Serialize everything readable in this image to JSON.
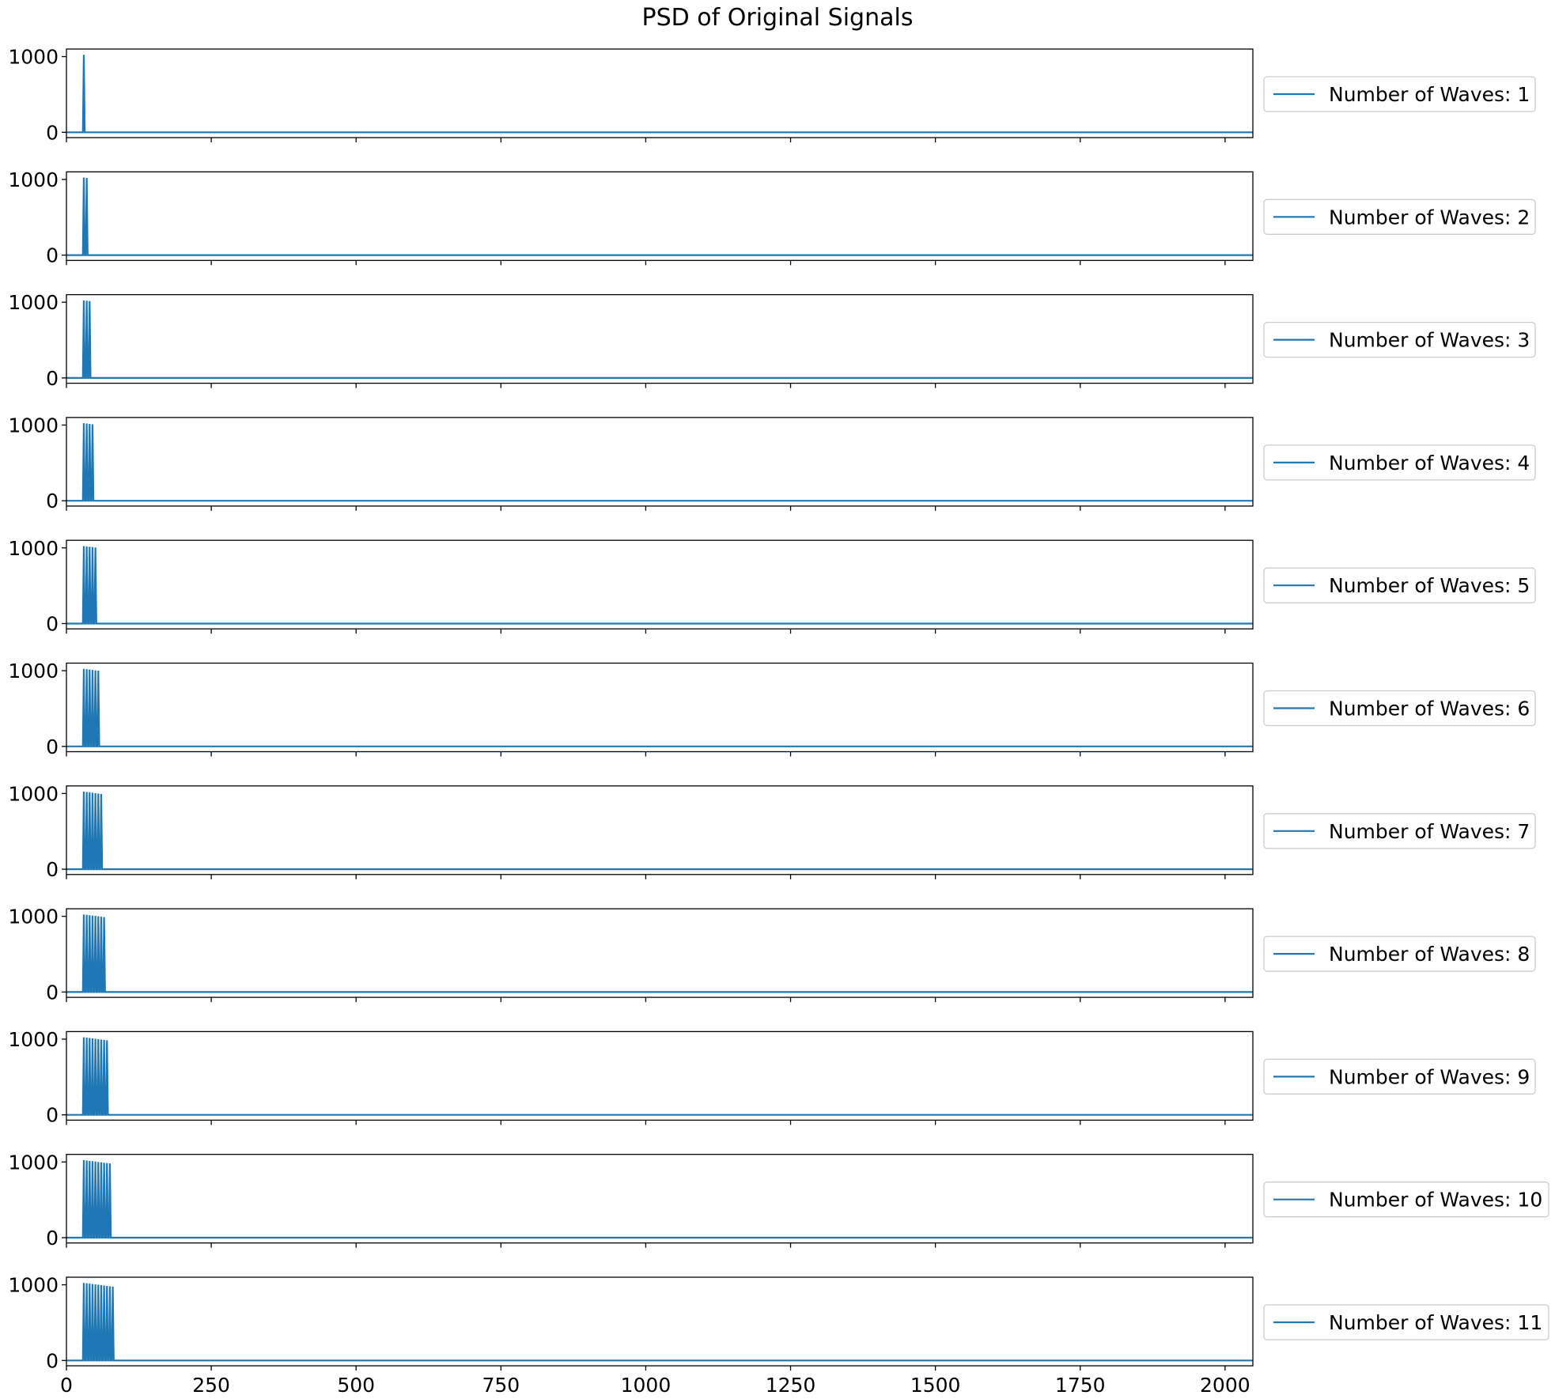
{
  "chart_data": {
    "type": "line",
    "title": "PSD of Original Signals",
    "xlim": [
      0,
      2048
    ],
    "ylim": [
      -70,
      1100
    ],
    "x_ticks": [
      "0",
      "250",
      "500",
      "750",
      "1000",
      "1250",
      "1500",
      "1750",
      "2000"
    ],
    "y_ticks": [
      "0",
      "1000"
    ],
    "line_color": "#1f77b4",
    "legend_position": "right",
    "subplots": [
      {
        "legend": "Number of Waves: 1",
        "peaks": [
          {
            "x": 30,
            "y": 1024
          }
        ]
      },
      {
        "legend": "Number of Waves: 2",
        "peaks": [
          {
            "x": 30,
            "y": 1024
          },
          {
            "x": 35,
            "y": 1020
          }
        ]
      },
      {
        "legend": "Number of Waves: 3",
        "peaks": [
          {
            "x": 30,
            "y": 1024
          },
          {
            "x": 35,
            "y": 1020
          },
          {
            "x": 40,
            "y": 1015
          }
        ]
      },
      {
        "legend": "Number of Waves: 4",
        "peaks": [
          {
            "x": 30,
            "y": 1024
          },
          {
            "x": 35,
            "y": 1020
          },
          {
            "x": 40,
            "y": 1015
          },
          {
            "x": 45,
            "y": 1010
          }
        ]
      },
      {
        "legend": "Number of Waves: 5",
        "peaks": [
          {
            "x": 30,
            "y": 1024
          },
          {
            "x": 35,
            "y": 1020
          },
          {
            "x": 40,
            "y": 1015
          },
          {
            "x": 45,
            "y": 1010
          },
          {
            "x": 50,
            "y": 1005
          }
        ]
      },
      {
        "legend": "Number of Waves: 6",
        "peaks": [
          {
            "x": 30,
            "y": 1024
          },
          {
            "x": 35,
            "y": 1020
          },
          {
            "x": 40,
            "y": 1015
          },
          {
            "x": 45,
            "y": 1010
          },
          {
            "x": 50,
            "y": 1005
          },
          {
            "x": 55,
            "y": 1000
          }
        ]
      },
      {
        "legend": "Number of Waves: 7",
        "peaks": [
          {
            "x": 30,
            "y": 1024
          },
          {
            "x": 35,
            "y": 1020
          },
          {
            "x": 40,
            "y": 1015
          },
          {
            "x": 45,
            "y": 1010
          },
          {
            "x": 50,
            "y": 1005
          },
          {
            "x": 55,
            "y": 1000
          },
          {
            "x": 60,
            "y": 995
          }
        ]
      },
      {
        "legend": "Number of Waves: 8",
        "peaks": [
          {
            "x": 30,
            "y": 1024
          },
          {
            "x": 35,
            "y": 1020
          },
          {
            "x": 40,
            "y": 1015
          },
          {
            "x": 45,
            "y": 1010
          },
          {
            "x": 50,
            "y": 1005
          },
          {
            "x": 55,
            "y": 1000
          },
          {
            "x": 60,
            "y": 995
          },
          {
            "x": 65,
            "y": 990
          }
        ]
      },
      {
        "legend": "Number of Waves: 9",
        "peaks": [
          {
            "x": 30,
            "y": 1024
          },
          {
            "x": 35,
            "y": 1020
          },
          {
            "x": 40,
            "y": 1015
          },
          {
            "x": 45,
            "y": 1010
          },
          {
            "x": 50,
            "y": 1005
          },
          {
            "x": 55,
            "y": 1000
          },
          {
            "x": 60,
            "y": 995
          },
          {
            "x": 65,
            "y": 990
          },
          {
            "x": 70,
            "y": 985
          }
        ]
      },
      {
        "legend": "Number of Waves: 10",
        "peaks": [
          {
            "x": 30,
            "y": 1024
          },
          {
            "x": 35,
            "y": 1020
          },
          {
            "x": 40,
            "y": 1015
          },
          {
            "x": 45,
            "y": 1010
          },
          {
            "x": 50,
            "y": 1005
          },
          {
            "x": 55,
            "y": 1000
          },
          {
            "x": 60,
            "y": 995
          },
          {
            "x": 65,
            "y": 990
          },
          {
            "x": 70,
            "y": 985
          },
          {
            "x": 75,
            "y": 980
          }
        ]
      },
      {
        "legend": "Number of Waves: 11",
        "peaks": [
          {
            "x": 30,
            "y": 1024
          },
          {
            "x": 35,
            "y": 1020
          },
          {
            "x": 40,
            "y": 1015
          },
          {
            "x": 45,
            "y": 1010
          },
          {
            "x": 50,
            "y": 1005
          },
          {
            "x": 55,
            "y": 1000
          },
          {
            "x": 60,
            "y": 995
          },
          {
            "x": 65,
            "y": 990
          },
          {
            "x": 70,
            "y": 985
          },
          {
            "x": 75,
            "y": 980
          },
          {
            "x": 80,
            "y": 975
          }
        ]
      }
    ]
  }
}
